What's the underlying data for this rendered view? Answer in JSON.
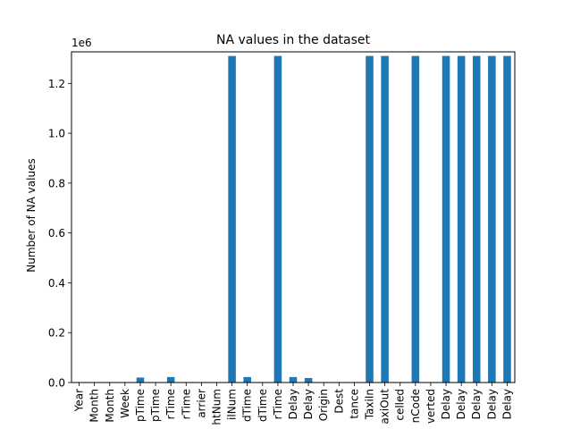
{
  "chart_data": {
    "type": "bar",
    "title": "NA values in the dataset",
    "xlabel": "",
    "ylabel": "Number of NA values",
    "scale_label": "1e6",
    "ylim": [
      0,
      1.3266
    ],
    "yticks": [
      0.0,
      0.2,
      0.4,
      0.6,
      0.8,
      1.0,
      1.2
    ],
    "ytick_labels": [
      "0.0",
      "0.2",
      "0.4",
      "0.6",
      "0.8",
      "1.0",
      "1.2"
    ],
    "bar_color": "#1f77b4",
    "legend": "none",
    "grid": false,
    "categories": [
      "Year",
      "Month",
      "Month",
      "Week",
      "pTime",
      "pTime",
      "rTime",
      "rTime",
      "arrier",
      "htNum",
      "ilNum",
      "dTime",
      "dTime",
      "rTime",
      "Delay",
      "Delay",
      "Origin",
      "Dest",
      "tance",
      "TaxiIn",
      "axiOut",
      "celled",
      "nCode",
      "verted",
      "Delay",
      "Delay",
      "Delay",
      "Delay",
      "Delay"
    ],
    "values": [
      0,
      0,
      0,
      0,
      0.02,
      0,
      0.022,
      0,
      0,
      0,
      1.31,
      0.022,
      0,
      1.31,
      0.022,
      0.018,
      0,
      0,
      0,
      1.31,
      1.31,
      0,
      1.31,
      0,
      1.31,
      1.31,
      1.31,
      1.31,
      1.31
    ]
  }
}
